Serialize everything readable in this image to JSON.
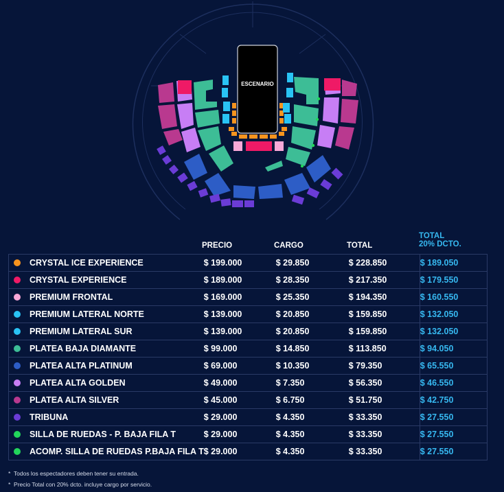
{
  "stage": {
    "label": "ESCENARIO"
  },
  "colors": {
    "background": "#061539",
    "crystal_ice": "#f7941e",
    "crystal": "#ef1a66",
    "premium_frontal": "#f8a8d8",
    "premium_lateral": "#29c3f4",
    "platea_baja_diamante": "#3dbd96",
    "platea_alta_platinum": "#2d5dc6",
    "platea_alta_golden": "#c77ef5",
    "platea_alta_silver": "#b9398f",
    "tribuna": "#6b3cd6",
    "silla_ruedas": "#22d65b",
    "accent_total": "#36b8f0"
  },
  "table": {
    "headers": {
      "precio": "PRECIO",
      "cargo": "CARGO",
      "total": "TOTAL",
      "total20_line1": "TOTAL",
      "total20_line2": "20% DCTO."
    },
    "rows": [
      {
        "name": "CRYSTAL ICE EXPERIENCE",
        "precio": "$ 199.000",
        "cargo": "$ 29.850",
        "total": "$ 228.850",
        "total20": "$ 189.050",
        "color": "#f7941e"
      },
      {
        "name": "CRYSTAL EXPERIENCE",
        "precio": "$ 189.000",
        "cargo": "$ 28.350",
        "total": "$ 217.350",
        "total20": "$ 179.550",
        "color": "#ef1a66"
      },
      {
        "name": "PREMIUM FRONTAL",
        "precio": "$ 169.000",
        "cargo": "$ 25.350",
        "total": "$ 194.350",
        "total20": "$ 160.550",
        "color": "#f8a8d8"
      },
      {
        "name": "PREMIUM LATERAL NORTE",
        "precio": "$ 139.000",
        "cargo": "$ 20.850",
        "total": "$ 159.850",
        "total20": "$ 132.050",
        "color": "#29c3f4"
      },
      {
        "name": "PREMIUM LATERAL SUR",
        "precio": "$ 139.000",
        "cargo": "$ 20.850",
        "total": "$ 159.850",
        "total20": "$ 132.050",
        "color": "#29c3f4"
      },
      {
        "name": "PLATEA BAJA DIAMANTE",
        "precio": "$ 99.000",
        "cargo": "$ 14.850",
        "total": "$ 113.850",
        "total20": "$ 94.050",
        "color": "#3dbd96"
      },
      {
        "name": "PLATEA ALTA PLATINUM",
        "precio": "$ 69.000",
        "cargo": "$ 10.350",
        "total": "$ 79.350",
        "total20": "$ 65.550",
        "color": "#2d5dc6"
      },
      {
        "name": "PLATEA ALTA GOLDEN",
        "precio": "$ 49.000",
        "cargo": "$ 7.350",
        "total": "$ 56.350",
        "total20": "$ 46.550",
        "color": "#c77ef5"
      },
      {
        "name": "PLATEA ALTA SILVER",
        "precio": "$ 45.000",
        "cargo": "$ 6.750",
        "total": "$ 51.750",
        "total20": "$ 42.750",
        "color": "#b9398f"
      },
      {
        "name": "TRIBUNA",
        "precio": "$ 29.000",
        "cargo": "$ 4.350",
        "total": "$ 33.350",
        "total20": "$ 27.550",
        "color": "#6b3cd6"
      },
      {
        "name": "SILLA DE RUEDAS - P. BAJA FILA T",
        "precio": "$ 29.000",
        "cargo": "$ 4.350",
        "total": "$ 33.350",
        "total20": "$ 27.550",
        "color": "#22d65b"
      },
      {
        "name": "ACOMP. SILLA DE RUEDAS P.BAJA FILA T",
        "precio": "$ 29.000",
        "cargo": "$ 4.350",
        "total": "$ 33.350",
        "total20": "$ 27.550",
        "color": "#22d65b"
      }
    ]
  },
  "notes": [
    "Todos los espectadores deben tener su entrada.",
    "Precio Total con 20% dcto. incluye cargo por servicio."
  ]
}
